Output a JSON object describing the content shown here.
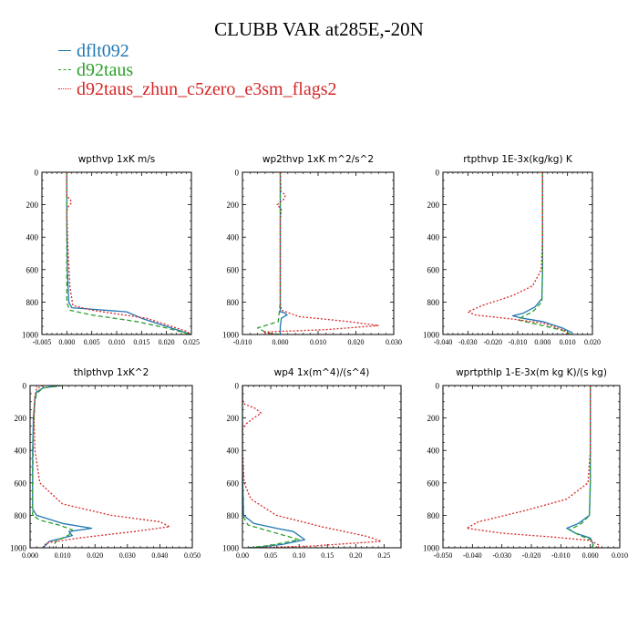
{
  "title": "CLUBB VAR at285E,-20N",
  "colors": {
    "series": [
      "#1f77b4",
      "#2ca02c",
      "#d62728"
    ]
  },
  "legend": [
    {
      "label": "dflt092",
      "color": "#1f77b4",
      "dash": "solid"
    },
    {
      "label": "d92taus",
      "color": "#2ca02c",
      "dash": "dashed"
    },
    {
      "label": "d92taus_zhun_c5zero_e3sm_flags2",
      "color": "#d62728",
      "dash": "dotted"
    }
  ],
  "chart_data": [
    {
      "type": "line",
      "title": "wpthvp   1xK m/s",
      "xlim": [
        -0.005,
        0.025
      ],
      "ylim": [
        1000,
        0
      ],
      "xticks": [
        -0.005,
        0,
        0.005,
        0.01,
        0.015,
        0.02,
        0.025
      ],
      "xticklabels": [
        "-0.005",
        "0.000",
        "0.005",
        "0.010",
        "0.015",
        "0.020",
        "0.025"
      ],
      "yticks": [
        0,
        200,
        400,
        600,
        800,
        1000
      ],
      "series": [
        {
          "name": "dflt092",
          "points": [
            [
              0,
              0
            ],
            [
              0,
              300
            ],
            [
              0.0001,
              600
            ],
            [
              0.0004,
              800
            ],
            [
              0.001,
              835
            ],
            [
              0.004,
              842
            ],
            [
              0.012,
              860
            ],
            [
              0.015,
              900
            ],
            [
              0.02,
              950
            ],
            [
              0.025,
              1000
            ]
          ]
        },
        {
          "name": "d92taus",
          "points": [
            [
              0,
              0
            ],
            [
              0,
              300
            ],
            [
              0,
              600
            ],
            [
              0,
              800
            ],
            [
              0.0005,
              850
            ],
            [
              0.005,
              880
            ],
            [
              0.014,
              920
            ],
            [
              0.02,
              960
            ],
            [
              0.025,
              1000
            ]
          ]
        },
        {
          "name": "d92taus_zhun_c5zero_e3sm_flags2",
          "points": [
            [
              0,
              0
            ],
            [
              0,
              150
            ],
            [
              0.0007,
              165
            ],
            [
              0.0009,
              190
            ],
            [
              0.0003,
              210
            ],
            [
              0,
              240
            ],
            [
              0.0002,
              450
            ],
            [
              0.0006,
              700
            ],
            [
              0.0012,
              820
            ],
            [
              0.005,
              850
            ],
            [
              0.016,
              900
            ],
            [
              0.024,
              980
            ],
            [
              0.025,
              1000
            ]
          ]
        }
      ]
    },
    {
      "type": "line",
      "title": "wp2thvp   1xK m^2/s^2",
      "xlim": [
        -0.01,
        0.03
      ],
      "ylim": [
        1000,
        0
      ],
      "xticks": [
        -0.01,
        0,
        0.01,
        0.02,
        0.03
      ],
      "xticklabels": [
        "-0.010",
        "0.000",
        "0.010",
        "0.020",
        "0.030"
      ],
      "yticks": [
        0,
        200,
        400,
        600,
        800,
        1000
      ],
      "series": [
        {
          "name": "dflt092",
          "points": [
            [
              0,
              0
            ],
            [
              0,
              800
            ],
            [
              0,
              860
            ],
            [
              0.001,
              865
            ],
            [
              0.0018,
              880
            ],
            [
              0.0003,
              900
            ],
            [
              0,
              950
            ],
            [
              0,
              1000
            ]
          ]
        },
        {
          "name": "d92taus",
          "points": [
            [
              0,
              0
            ],
            [
              0,
              800
            ],
            [
              -0.0005,
              920
            ],
            [
              -0.006,
              960
            ],
            [
              -0.0035,
              990
            ],
            [
              0,
              1000
            ]
          ]
        },
        {
          "name": "d92taus_zhun_c5zero_e3sm_flags2",
          "points": [
            [
              0,
              0
            ],
            [
              0.0002,
              120
            ],
            [
              0.0014,
              140
            ],
            [
              0.001,
              165
            ],
            [
              -0.0008,
              200
            ],
            [
              0.0003,
              230
            ],
            [
              0,
              300
            ],
            [
              0,
              800
            ],
            [
              0.0003,
              850
            ],
            [
              0.005,
              890
            ],
            [
              0.018,
              920
            ],
            [
              0.026,
              945
            ],
            [
              0.012,
              970
            ],
            [
              -0.0045,
              985
            ],
            [
              -0.0015,
              1000
            ]
          ]
        }
      ]
    },
    {
      "type": "line",
      "title": "rtpthvp   1E-3x(kg/kg) K",
      "xlim": [
        -0.04,
        0.02
      ],
      "ylim": [
        1000,
        0
      ],
      "xticks": [
        -0.04,
        -0.03,
        -0.02,
        -0.01,
        0,
        0.01,
        0.02
      ],
      "xticklabels": [
        "-0.040",
        "-0.030",
        "-0.020",
        "-0.010",
        "0.000",
        "0.010",
        "0.020"
      ],
      "yticks": [
        0,
        200,
        400,
        600,
        800,
        1000
      ],
      "series": [
        {
          "name": "dflt092",
          "points": [
            [
              0,
              0
            ],
            [
              0,
              600
            ],
            [
              -0.0003,
              780
            ],
            [
              -0.003,
              830
            ],
            [
              -0.008,
              870
            ],
            [
              -0.012,
              885
            ],
            [
              -0.008,
              900
            ],
            [
              0,
              920
            ],
            [
              0.008,
              960
            ],
            [
              0.012,
              990
            ]
          ]
        },
        {
          "name": "d92taus",
          "points": [
            [
              0,
              0
            ],
            [
              0,
              600
            ],
            [
              -0.0003,
              800
            ],
            [
              -0.004,
              860
            ],
            [
              -0.008,
              890
            ],
            [
              -0.01,
              910
            ],
            [
              0,
              945
            ],
            [
              0.008,
              975
            ],
            [
              0.011,
              995
            ]
          ]
        },
        {
          "name": "d92taus_zhun_c5zero_e3sm_flags2",
          "points": [
            [
              0,
              0
            ],
            [
              0,
              400
            ],
            [
              -0.0005,
              600
            ],
            [
              -0.004,
              700
            ],
            [
              -0.012,
              760
            ],
            [
              -0.024,
              820
            ],
            [
              -0.03,
              860
            ],
            [
              -0.027,
              880
            ],
            [
              -0.012,
              905
            ],
            [
              0,
              930
            ],
            [
              0.009,
              975
            ],
            [
              0.01,
              1000
            ]
          ]
        }
      ]
    },
    {
      "type": "line",
      "title": "thlpthvp   1xK^2",
      "xlim": [
        0,
        0.05
      ],
      "ylim": [
        1000,
        0
      ],
      "xticks": [
        0,
        0.01,
        0.02,
        0.03,
        0.04,
        0.05
      ],
      "xticklabels": [
        "0.000",
        "0.010",
        "0.020",
        "0.030",
        "0.040",
        "0.050"
      ],
      "yticks": [
        0,
        200,
        400,
        600,
        800,
        1000
      ],
      "series": [
        {
          "name": "dflt092",
          "points": [
            [
              0.009,
              0
            ],
            [
              0.004,
              15
            ],
            [
              0.002,
              40
            ],
            [
              0.0015,
              80
            ],
            [
              0.001,
              200
            ],
            [
              0.0008,
              400
            ],
            [
              0.0008,
              600
            ],
            [
              0.0008,
              760
            ],
            [
              0.002,
              800
            ],
            [
              0.01,
              850
            ],
            [
              0.019,
              880
            ],
            [
              0.012,
              900
            ],
            [
              0.013,
              925
            ],
            [
              0.006,
              960
            ],
            [
              0.004,
              1000
            ]
          ]
        },
        {
          "name": "d92taus",
          "points": [
            [
              0.01,
              0
            ],
            [
              0.004,
              15
            ],
            [
              0.002,
              50
            ],
            [
              0.0015,
              100
            ],
            [
              0.001,
              300
            ],
            [
              0.0008,
              600
            ],
            [
              0.0008,
              800
            ],
            [
              0.003,
              830
            ],
            [
              0.009,
              860
            ],
            [
              0.013,
              890
            ],
            [
              0.012,
              920
            ],
            [
              0.008,
              960
            ],
            [
              0.007,
              1000
            ]
          ]
        },
        {
          "name": "d92taus_zhun_c5zero_e3sm_flags2",
          "points": [
            [
              0.004,
              0
            ],
            [
              0.002,
              20
            ],
            [
              0.0015,
              60
            ],
            [
              0.0012,
              200
            ],
            [
              0.0015,
              400
            ],
            [
              0.003,
              600
            ],
            [
              0.01,
              730
            ],
            [
              0.025,
              800
            ],
            [
              0.04,
              840
            ],
            [
              0.043,
              870
            ],
            [
              0.032,
              900
            ],
            [
              0.015,
              940
            ],
            [
              0.005,
              970
            ],
            [
              0.004,
              1000
            ]
          ]
        }
      ]
    },
    {
      "type": "line",
      "title": "wp4   1x(m^4)/(s^4)",
      "xlim": [
        0,
        0.28
      ],
      "ylim": [
        1000,
        0
      ],
      "xticks": [
        0,
        0.05,
        0.1,
        0.15,
        0.2,
        0.25
      ],
      "xticklabels": [
        "0.00",
        "0.05",
        "0.10",
        "0.15",
        "0.20",
        "0.25"
      ],
      "yticks": [
        0,
        200,
        400,
        600,
        800,
        1000
      ],
      "series": [
        {
          "name": "dflt092",
          "points": [
            [
              0,
              0
            ],
            [
              0,
              500
            ],
            [
              0.002,
              800
            ],
            [
              0.02,
              850
            ],
            [
              0.06,
              880
            ],
            [
              0.09,
              900
            ],
            [
              0.11,
              950
            ],
            [
              0.07,
              980
            ],
            [
              0.02,
              1000
            ]
          ]
        },
        {
          "name": "d92taus",
          "points": [
            [
              0,
              0
            ],
            [
              0,
              500
            ],
            [
              0,
              800
            ],
            [
              0.01,
              860
            ],
            [
              0.05,
              900
            ],
            [
              0.1,
              950
            ],
            [
              0.05,
              985
            ],
            [
              0.01,
              1000
            ]
          ]
        },
        {
          "name": "d92taus_zhun_c5zero_e3sm_flags2",
          "points": [
            [
              0,
              0
            ],
            [
              0,
              90
            ],
            [
              0.004,
              115
            ],
            [
              0.022,
              140
            ],
            [
              0.033,
              170
            ],
            [
              0.02,
              200
            ],
            [
              0.007,
              235
            ],
            [
              0,
              270
            ],
            [
              0,
              400
            ],
            [
              0.003,
              600
            ],
            [
              0.015,
              700
            ],
            [
              0.06,
              800
            ],
            [
              0.14,
              870
            ],
            [
              0.22,
              930
            ],
            [
              0.245,
              960
            ],
            [
              0.12,
              990
            ],
            [
              0.02,
              1000
            ]
          ]
        }
      ]
    },
    {
      "type": "line",
      "title": "wprtpthlp   1-E-3x(m kg K)/(s kg)",
      "xlim": [
        -0.05,
        0.01
      ],
      "ylim": [
        1000,
        0
      ],
      "xticks": [
        -0.05,
        -0.04,
        -0.03,
        -0.02,
        -0.01,
        0,
        0.01
      ],
      "xticklabels": [
        "-0.050",
        "-0.040",
        "-0.030",
        "-0.020",
        "-0.010",
        "0.000",
        "0.010"
      ],
      "yticks": [
        0,
        200,
        400,
        600,
        800,
        1000
      ],
      "series": [
        {
          "name": "dflt092",
          "points": [
            [
              0,
              0
            ],
            [
              0,
              600
            ],
            [
              -0.0003,
              800
            ],
            [
              -0.004,
              850
            ],
            [
              -0.008,
              880
            ],
            [
              -0.005,
              910
            ],
            [
              0,
              940
            ],
            [
              0.001,
              980
            ],
            [
              0.0005,
              1000
            ]
          ]
        },
        {
          "name": "d92taus",
          "points": [
            [
              0,
              0
            ],
            [
              0,
              600
            ],
            [
              -0.0003,
              800
            ],
            [
              -0.003,
              850
            ],
            [
              -0.007,
              890
            ],
            [
              -0.004,
              920
            ],
            [
              0,
              950
            ],
            [
              0.001,
              985
            ],
            [
              0.0005,
              1000
            ]
          ]
        },
        {
          "name": "d92taus_zhun_c5zero_e3sm_flags2",
          "points": [
            [
              0,
              0
            ],
            [
              0,
              400
            ],
            [
              -0.0008,
              600
            ],
            [
              -0.008,
              700
            ],
            [
              -0.022,
              770
            ],
            [
              -0.038,
              840
            ],
            [
              -0.042,
              880
            ],
            [
              -0.03,
              910
            ],
            [
              -0.012,
              935
            ],
            [
              0,
              955
            ],
            [
              0.003,
              985
            ],
            [
              0.0025,
              1000
            ]
          ]
        }
      ]
    }
  ]
}
